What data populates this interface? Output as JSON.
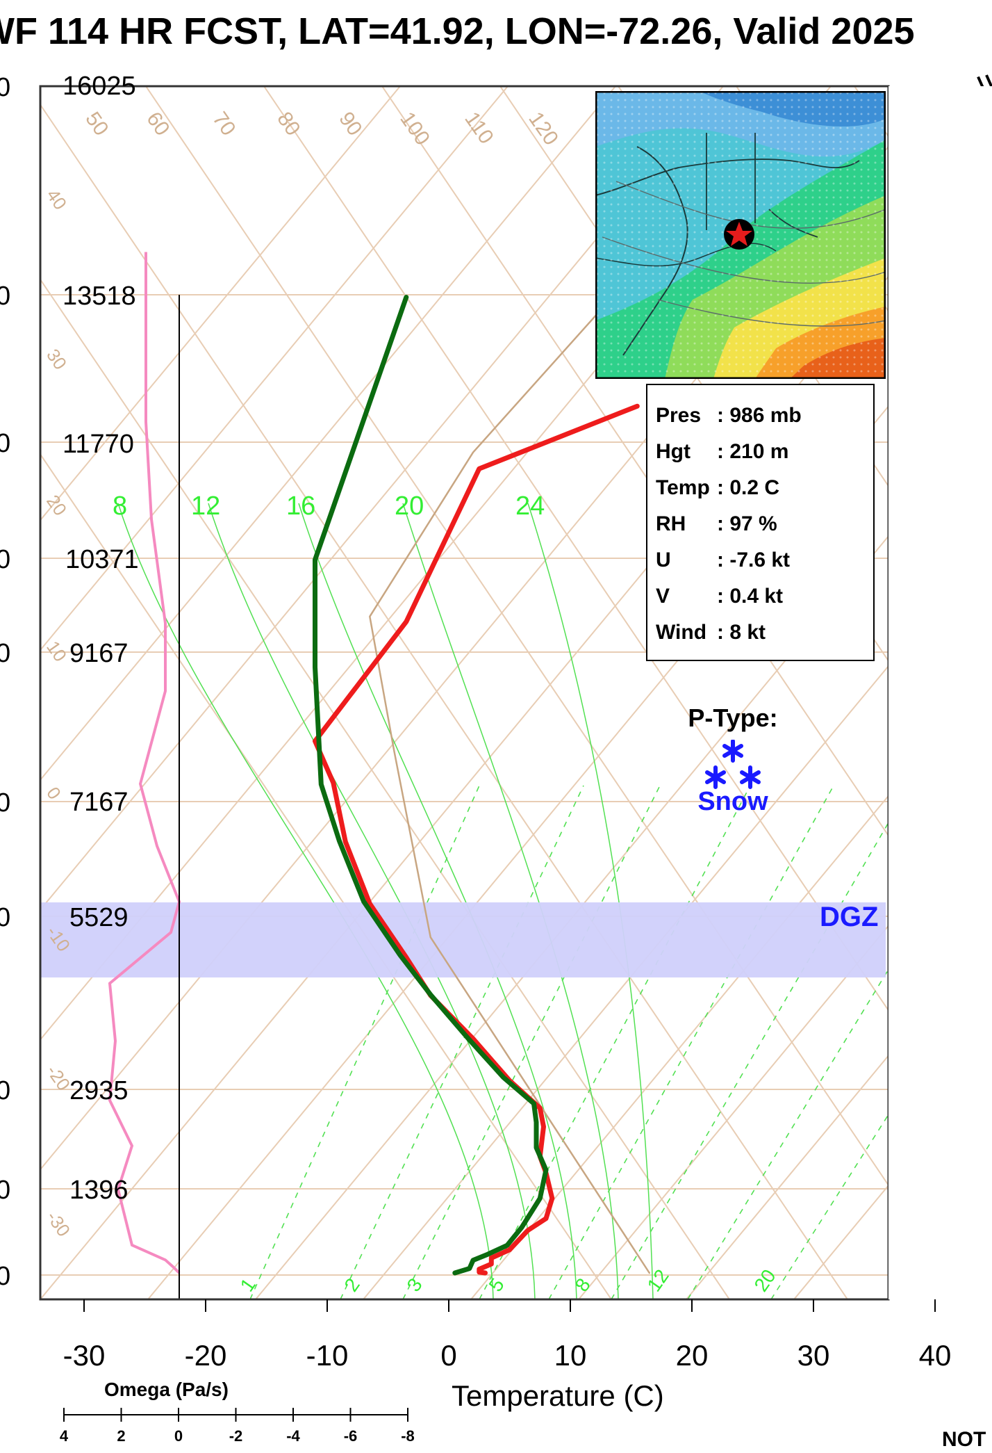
{
  "header": {
    "title": "WF 114 HR FCST, LAT=41.92, LON=-72.26, Valid 2025"
  },
  "info_box": {
    "rows": [
      {
        "key": "Pres",
        "value": ": 986 mb"
      },
      {
        "key": "Hgt",
        "value": ": 210 m"
      },
      {
        "key": "Temp",
        "value": ": 0.2 C"
      },
      {
        "key": "RH",
        "value": ": 97 %"
      },
      {
        "key": "U",
        "value": ": -7.6 kt"
      },
      {
        "key": "V",
        "value": ": 0.4 kt"
      },
      {
        "key": "Wind",
        "value": ": 8 kt"
      }
    ]
  },
  "ptype": {
    "title": "P-Type:",
    "value": "Snow",
    "color": "#1a1aff"
  },
  "dgz_label": "DGZ",
  "omega_label": "Omega (Pa/s)",
  "note_label": "NOT",
  "colors": {
    "temperature": "#ee1c1c",
    "dewpoint": "#0b6b10",
    "omega": "#f58ac0",
    "parcel": "#c8a682",
    "dgz_band": "#d0d0fb",
    "mixing_ratio": "#52e052",
    "isotherm": "#e8cdb4"
  },
  "chart_data": {
    "type": "skew-t",
    "xlabel": "Temperature (C)",
    "x_ticks": [
      -30,
      -20,
      -10,
      0,
      10,
      20,
      30,
      40
    ],
    "omega_ticks": [
      4,
      2,
      0,
      -2,
      -4,
      -6,
      -8
    ],
    "height_labels": [
      "16025",
      "13518",
      "11770",
      "10371",
      "9167",
      "7167",
      "5529",
      "2935",
      "1396"
    ],
    "left_edge_labels": [
      "0",
      "0",
      "0",
      "0",
      "0",
      "0",
      "0",
      "0",
      "0",
      "0"
    ],
    "isotherm_labels": [
      "50",
      "60",
      "70",
      "80",
      "90",
      "100",
      "110",
      "120"
    ],
    "right_isotherm_labels": [
      "30",
      "20",
      "10",
      "0",
      "10"
    ],
    "left_isotherm_labels": [
      "40",
      "30",
      "20",
      "10",
      "0",
      "-10",
      "-20",
      "-30"
    ],
    "mixing_ratio_labels": [
      "1",
      "2",
      "3",
      "5",
      "8",
      "12",
      "20"
    ],
    "adiabat_labels": [
      "8",
      "12",
      "16",
      "20",
      "24"
    ],
    "temperature_profile": [
      {
        "x": 3.0,
        "h": 0
      },
      {
        "x": 2.5,
        "h": 10
      },
      {
        "x": 2.5,
        "h": 50
      },
      {
        "x": 3.5,
        "h": 120
      },
      {
        "x": 3.5,
        "h": 200
      },
      {
        "x": 5.0,
        "h": 310
      },
      {
        "x": 6.5,
        "h": 570
      },
      {
        "x": 8.0,
        "h": 730
      },
      {
        "x": 8.5,
        "h": 1000
      },
      {
        "x": 8.0,
        "h": 1340
      },
      {
        "x": 7.5,
        "h": 1560
      },
      {
        "x": 7.8,
        "h": 1960
      },
      {
        "x": 7.5,
        "h": 2210
      },
      {
        "x": 5.0,
        "h": 2580
      },
      {
        "x": 2.0,
        "h": 3140
      },
      {
        "x": -1.5,
        "h": 3720
      },
      {
        "x": -3.5,
        "h": 4230
      },
      {
        "x": -6.5,
        "h": 4950
      },
      {
        "x": -8.5,
        "h": 5780
      },
      {
        "x": -9.5,
        "h": 6570
      },
      {
        "x": -11.0,
        "h": 7130
      },
      {
        "x": -3.5,
        "h": 8730
      },
      {
        "x": 2.5,
        "h": 10780
      },
      {
        "x": 15.5,
        "h": 11620
      }
    ],
    "dewpoint_profile": [
      {
        "x": 0.5,
        "h": 0
      },
      {
        "x": 1.7,
        "h": 60
      },
      {
        "x": 2.0,
        "h": 170
      },
      {
        "x": 3.2,
        "h": 250
      },
      {
        "x": 4.8,
        "h": 370
      },
      {
        "x": 6.0,
        "h": 610
      },
      {
        "x": 7.5,
        "h": 1000
      },
      {
        "x": 8.0,
        "h": 1380
      },
      {
        "x": 7.2,
        "h": 1680
      },
      {
        "x": 7.2,
        "h": 2020
      },
      {
        "x": 7.0,
        "h": 2270
      },
      {
        "x": 4.5,
        "h": 2620
      },
      {
        "x": 1.5,
        "h": 3160
      },
      {
        "x": -1.5,
        "h": 3730
      },
      {
        "x": -4.0,
        "h": 4260
      },
      {
        "x": -7.0,
        "h": 4980
      },
      {
        "x": -9.0,
        "h": 5790
      },
      {
        "x": -10.5,
        "h": 6550
      },
      {
        "x": -11.0,
        "h": 8120
      },
      {
        "x": -11.0,
        "h": 9560
      },
      {
        "x": -3.5,
        "h": 13080
      }
    ],
    "omega_profile": [
      {
        "x": 0,
        "h": 0
      },
      {
        "x": 0.2,
        "h": 60
      },
      {
        "x": 0.5,
        "h": 140
      },
      {
        "x": 1.7,
        "h": 300
      },
      {
        "x": 2.2,
        "h": 900
      },
      {
        "x": 1.7,
        "h": 1370
      },
      {
        "x": 2.5,
        "h": 1860
      },
      {
        "x": 2.3,
        "h": 2500
      },
      {
        "x": 2.5,
        "h": 3120
      },
      {
        "x": 0.3,
        "h": 3670
      },
      {
        "x": 0,
        "h": 4000
      },
      {
        "x": 0.8,
        "h": 4600
      },
      {
        "x": 1.4,
        "h": 5270
      },
      {
        "x": 0.5,
        "h": 6270
      },
      {
        "x": 0.5,
        "h": 7000
      },
      {
        "x": 1.0,
        "h": 8120
      },
      {
        "x": 1.2,
        "h": 9170
      },
      {
        "x": 1.2,
        "h": 11000
      }
    ],
    "parcel_profile": [
      {
        "x": 16.5,
        "h": 0
      },
      {
        "x": 8.5,
        "h": 2000
      },
      {
        "x": -1.5,
        "h": 4500
      },
      {
        "x": -4.5,
        "h": 7000
      },
      {
        "x": -6.5,
        "h": 8800
      },
      {
        "x": 2.0,
        "h": 11000
      },
      {
        "x": 13.0,
        "h": 13000
      }
    ]
  }
}
